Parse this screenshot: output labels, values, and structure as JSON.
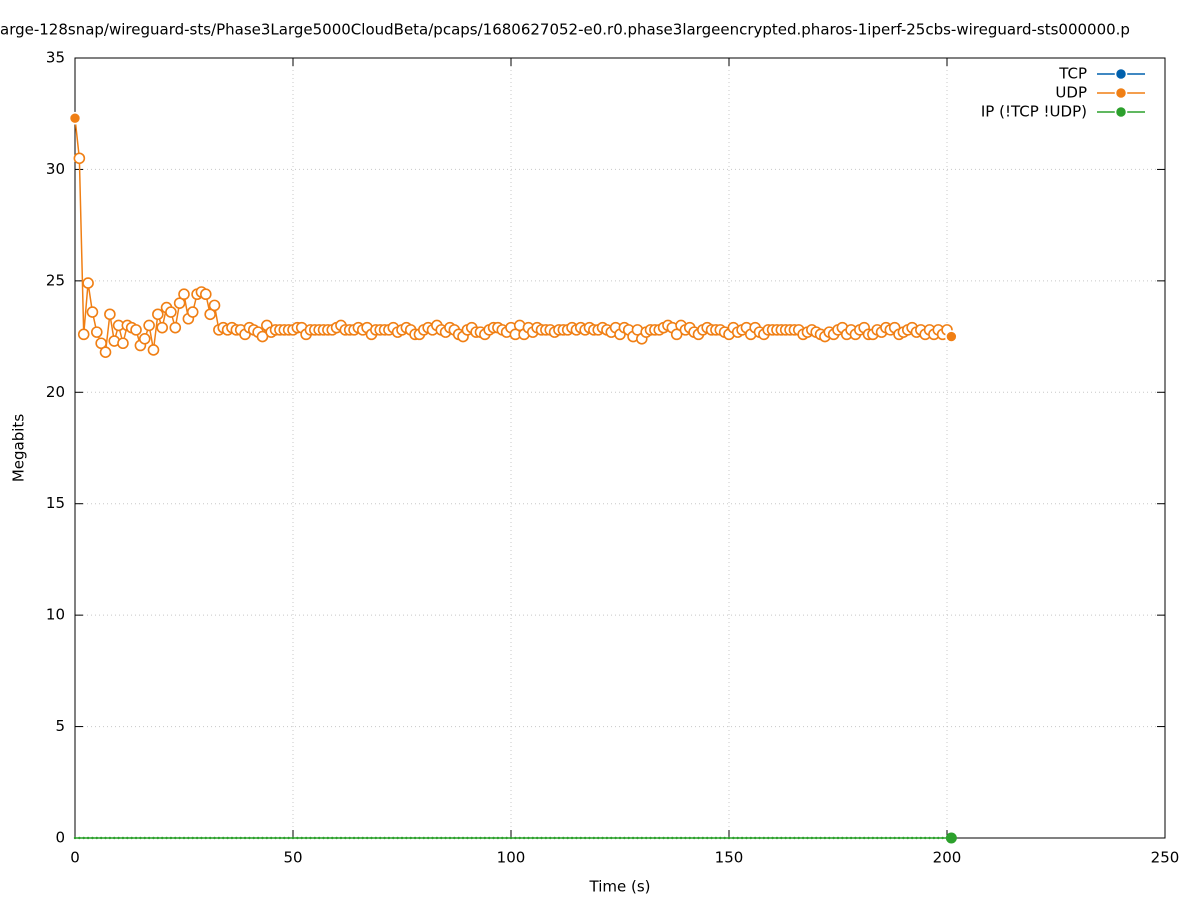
{
  "chart_data": {
    "type": "line",
    "title": "arge-128snap/wireguard-sts/Phase3Large5000CloudBeta/pcaps/1680627052-e0.r0.phase3largeencrypted.pharos-1iperf-25cbs-wireguard-sts000000.p",
    "x_label": "Time (s)",
    "y_label": "Megabits",
    "xlim": [
      0,
      250
    ],
    "xticks": [
      0,
      50,
      100,
      150,
      200,
      250
    ],
    "ylim": [
      0,
      35
    ],
    "yticks": [
      0,
      5,
      10,
      15,
      20,
      25,
      30,
      35
    ],
    "grid": true,
    "legend": "top-right",
    "x": [
      0,
      1,
      2,
      3,
      4,
      5,
      6,
      7,
      8,
      9,
      10,
      11,
      12,
      13,
      14,
      15,
      16,
      17,
      18,
      19,
      20,
      21,
      22,
      23,
      24,
      25,
      26,
      27,
      28,
      29,
      30,
      31,
      32,
      33,
      34,
      35,
      36,
      37,
      38,
      39,
      40,
      41,
      42,
      43,
      44,
      45,
      46,
      47,
      48,
      49,
      50,
      51,
      52,
      53,
      54,
      55,
      56,
      57,
      58,
      59,
      60,
      61,
      62,
      63,
      64,
      65,
      66,
      67,
      68,
      69,
      70,
      71,
      72,
      73,
      74,
      75,
      76,
      77,
      78,
      79,
      80,
      81,
      82,
      83,
      84,
      85,
      86,
      87,
      88,
      89,
      90,
      91,
      92,
      93,
      94,
      95,
      96,
      97,
      98,
      99,
      100,
      101,
      102,
      103,
      104,
      105,
      106,
      107,
      108,
      109,
      110,
      111,
      112,
      113,
      114,
      115,
      116,
      117,
      118,
      119,
      120,
      121,
      122,
      123,
      124,
      125,
      126,
      127,
      128,
      129,
      130,
      131,
      132,
      133,
      134,
      135,
      136,
      137,
      138,
      139,
      140,
      141,
      142,
      143,
      144,
      145,
      146,
      147,
      148,
      149,
      150,
      151,
      152,
      153,
      154,
      155,
      156,
      157,
      158,
      159,
      160,
      161,
      162,
      163,
      164,
      165,
      166,
      167,
      168,
      169,
      170,
      171,
      172,
      173,
      174,
      175,
      176,
      177,
      178,
      179,
      180,
      181,
      182,
      183,
      184,
      185,
      186,
      187,
      188,
      189,
      190,
      191,
      192,
      193,
      194,
      195,
      196,
      197,
      198,
      199,
      200,
      201
    ],
    "series": [
      {
        "name": "TCP",
        "color": "#0060ad",
        "values": [
          null,
          null,
          null,
          null,
          null,
          null,
          null,
          null,
          null,
          null,
          null,
          null,
          null,
          null,
          null,
          null,
          null,
          null,
          null,
          null,
          null,
          null,
          null,
          null,
          null,
          null,
          null,
          null,
          null,
          null,
          null,
          null,
          null,
          null,
          null,
          null,
          null,
          null,
          null,
          null,
          null,
          null,
          null,
          null,
          null,
          null,
          null,
          null,
          null,
          null,
          null,
          null,
          null,
          null,
          null,
          null,
          null,
          null,
          null,
          null,
          null,
          null,
          null,
          null,
          null,
          null,
          null,
          null,
          null,
          null,
          null,
          null,
          null,
          null,
          null,
          null,
          null,
          null,
          null,
          null,
          null,
          null,
          null,
          null,
          null,
          null,
          null,
          null,
          null,
          null,
          null,
          null,
          null,
          null,
          null,
          null,
          null,
          null,
          null,
          null,
          null,
          null,
          null,
          null,
          null,
          null,
          null,
          null,
          null,
          null,
          null,
          null,
          null,
          null,
          null,
          null,
          null,
          null,
          null,
          null,
          null,
          null,
          null,
          null,
          null,
          null,
          null,
          null,
          null,
          null,
          null,
          null,
          null,
          null,
          null,
          null,
          null,
          null,
          null,
          null,
          null,
          null,
          null,
          null,
          null,
          null,
          null,
          null,
          null,
          null,
          null,
          null,
          null,
          null,
          null,
          null,
          null,
          null,
          null,
          null,
          null,
          null,
          null,
          null,
          null,
          null,
          null,
          null,
          null,
          null,
          null,
          null,
          null,
          null,
          null,
          null,
          null,
          null,
          null,
          null,
          null,
          null,
          null,
          null,
          null,
          null,
          null,
          null,
          null,
          null,
          null,
          null,
          null,
          null,
          null,
          null,
          null,
          null,
          null,
          null,
          null,
          null
        ]
      },
      {
        "name": "UDP",
        "color": "#f07f14",
        "values": [
          32.3,
          30.5,
          22.6,
          24.9,
          23.6,
          22.7,
          22.2,
          21.8,
          23.5,
          22.3,
          23.0,
          22.2,
          23.0,
          22.9,
          22.8,
          22.1,
          22.4,
          23.0,
          21.9,
          23.5,
          22.9,
          23.8,
          23.6,
          22.9,
          24.0,
          24.4,
          23.3,
          23.6,
          24.4,
          24.5,
          24.4,
          23.5,
          23.9,
          22.8,
          22.9,
          22.8,
          22.9,
          22.8,
          22.8,
          22.6,
          22.9,
          22.8,
          22.7,
          22.5,
          23.0,
          22.7,
          22.8,
          22.8,
          22.8,
          22.8,
          22.8,
          22.9,
          22.9,
          22.6,
          22.8,
          22.8,
          22.8,
          22.8,
          22.8,
          22.8,
          22.9,
          23.0,
          22.8,
          22.8,
          22.8,
          22.9,
          22.8,
          22.9,
          22.6,
          22.8,
          22.8,
          22.8,
          22.8,
          22.9,
          22.7,
          22.8,
          22.9,
          22.8,
          22.6,
          22.6,
          22.8,
          22.9,
          22.8,
          23.0,
          22.8,
          22.7,
          22.9,
          22.8,
          22.6,
          22.5,
          22.8,
          22.9,
          22.7,
          22.7,
          22.6,
          22.8,
          22.9,
          22.9,
          22.8,
          22.7,
          22.9,
          22.6,
          23.0,
          22.6,
          22.9,
          22.7,
          22.9,
          22.8,
          22.8,
          22.8,
          22.7,
          22.8,
          22.8,
          22.8,
          22.9,
          22.8,
          22.9,
          22.8,
          22.9,
          22.8,
          22.8,
          22.9,
          22.8,
          22.7,
          22.9,
          22.6,
          22.9,
          22.8,
          22.5,
          22.8,
          22.4,
          22.7,
          22.8,
          22.8,
          22.8,
          22.9,
          23.0,
          22.9,
          22.6,
          23.0,
          22.8,
          22.9,
          22.7,
          22.6,
          22.8,
          22.9,
          22.8,
          22.8,
          22.8,
          22.7,
          22.6,
          22.9,
          22.7,
          22.8,
          22.9,
          22.6,
          22.9,
          22.7,
          22.6,
          22.8,
          22.8,
          22.8,
          22.8,
          22.8,
          22.8,
          22.8,
          22.8,
          22.6,
          22.7,
          22.8,
          22.7,
          22.6,
          22.5,
          22.7,
          22.6,
          22.8,
          22.9,
          22.6,
          22.8,
          22.6,
          22.8,
          22.9,
          22.6,
          22.6,
          22.8,
          22.7,
          22.9,
          22.8,
          22.9,
          22.6,
          22.7,
          22.8,
          22.9,
          22.7,
          22.8,
          22.6,
          22.8,
          22.6,
          22.8,
          22.6,
          22.8,
          22.5
        ]
      },
      {
        "name": "IP (!TCP  !UDP)",
        "color": "#2ca02c",
        "values": [
          0,
          0,
          0,
          0,
          0,
          0,
          0,
          0,
          0,
          0,
          0,
          0,
          0,
          0,
          0,
          0,
          0,
          0,
          0,
          0,
          0,
          0,
          0,
          0,
          0,
          0,
          0,
          0,
          0,
          0,
          0,
          0,
          0,
          0,
          0,
          0,
          0,
          0,
          0,
          0,
          0,
          0,
          0,
          0,
          0,
          0,
          0,
          0,
          0,
          0,
          0,
          0,
          0,
          0,
          0,
          0,
          0,
          0,
          0,
          0,
          0,
          0,
          0,
          0,
          0,
          0,
          0,
          0,
          0,
          0,
          0,
          0,
          0,
          0,
          0,
          0,
          0,
          0,
          0,
          0,
          0,
          0,
          0,
          0,
          0,
          0,
          0,
          0,
          0,
          0,
          0,
          0,
          0,
          0,
          0,
          0,
          0,
          0,
          0,
          0,
          0,
          0,
          0,
          0,
          0,
          0,
          0,
          0,
          0,
          0,
          0,
          0,
          0,
          0,
          0,
          0,
          0,
          0,
          0,
          0,
          0,
          0,
          0,
          0,
          0,
          0,
          0,
          0,
          0,
          0,
          0,
          0,
          0,
          0,
          0,
          0,
          0,
          0,
          0,
          0,
          0,
          0,
          0,
          0,
          0,
          0,
          0,
          0,
          0,
          0,
          0,
          0,
          0,
          0,
          0,
          0,
          0,
          0,
          0,
          0,
          0,
          0,
          0,
          0,
          0,
          0,
          0,
          0,
          0,
          0,
          0,
          0,
          0,
          0,
          0,
          0,
          0,
          0,
          0,
          0,
          0,
          0,
          0,
          0,
          0,
          0,
          0,
          0,
          0,
          0,
          0,
          0,
          0,
          0,
          0,
          0,
          0,
          0,
          0,
          0,
          0,
          0
        ]
      }
    ]
  }
}
